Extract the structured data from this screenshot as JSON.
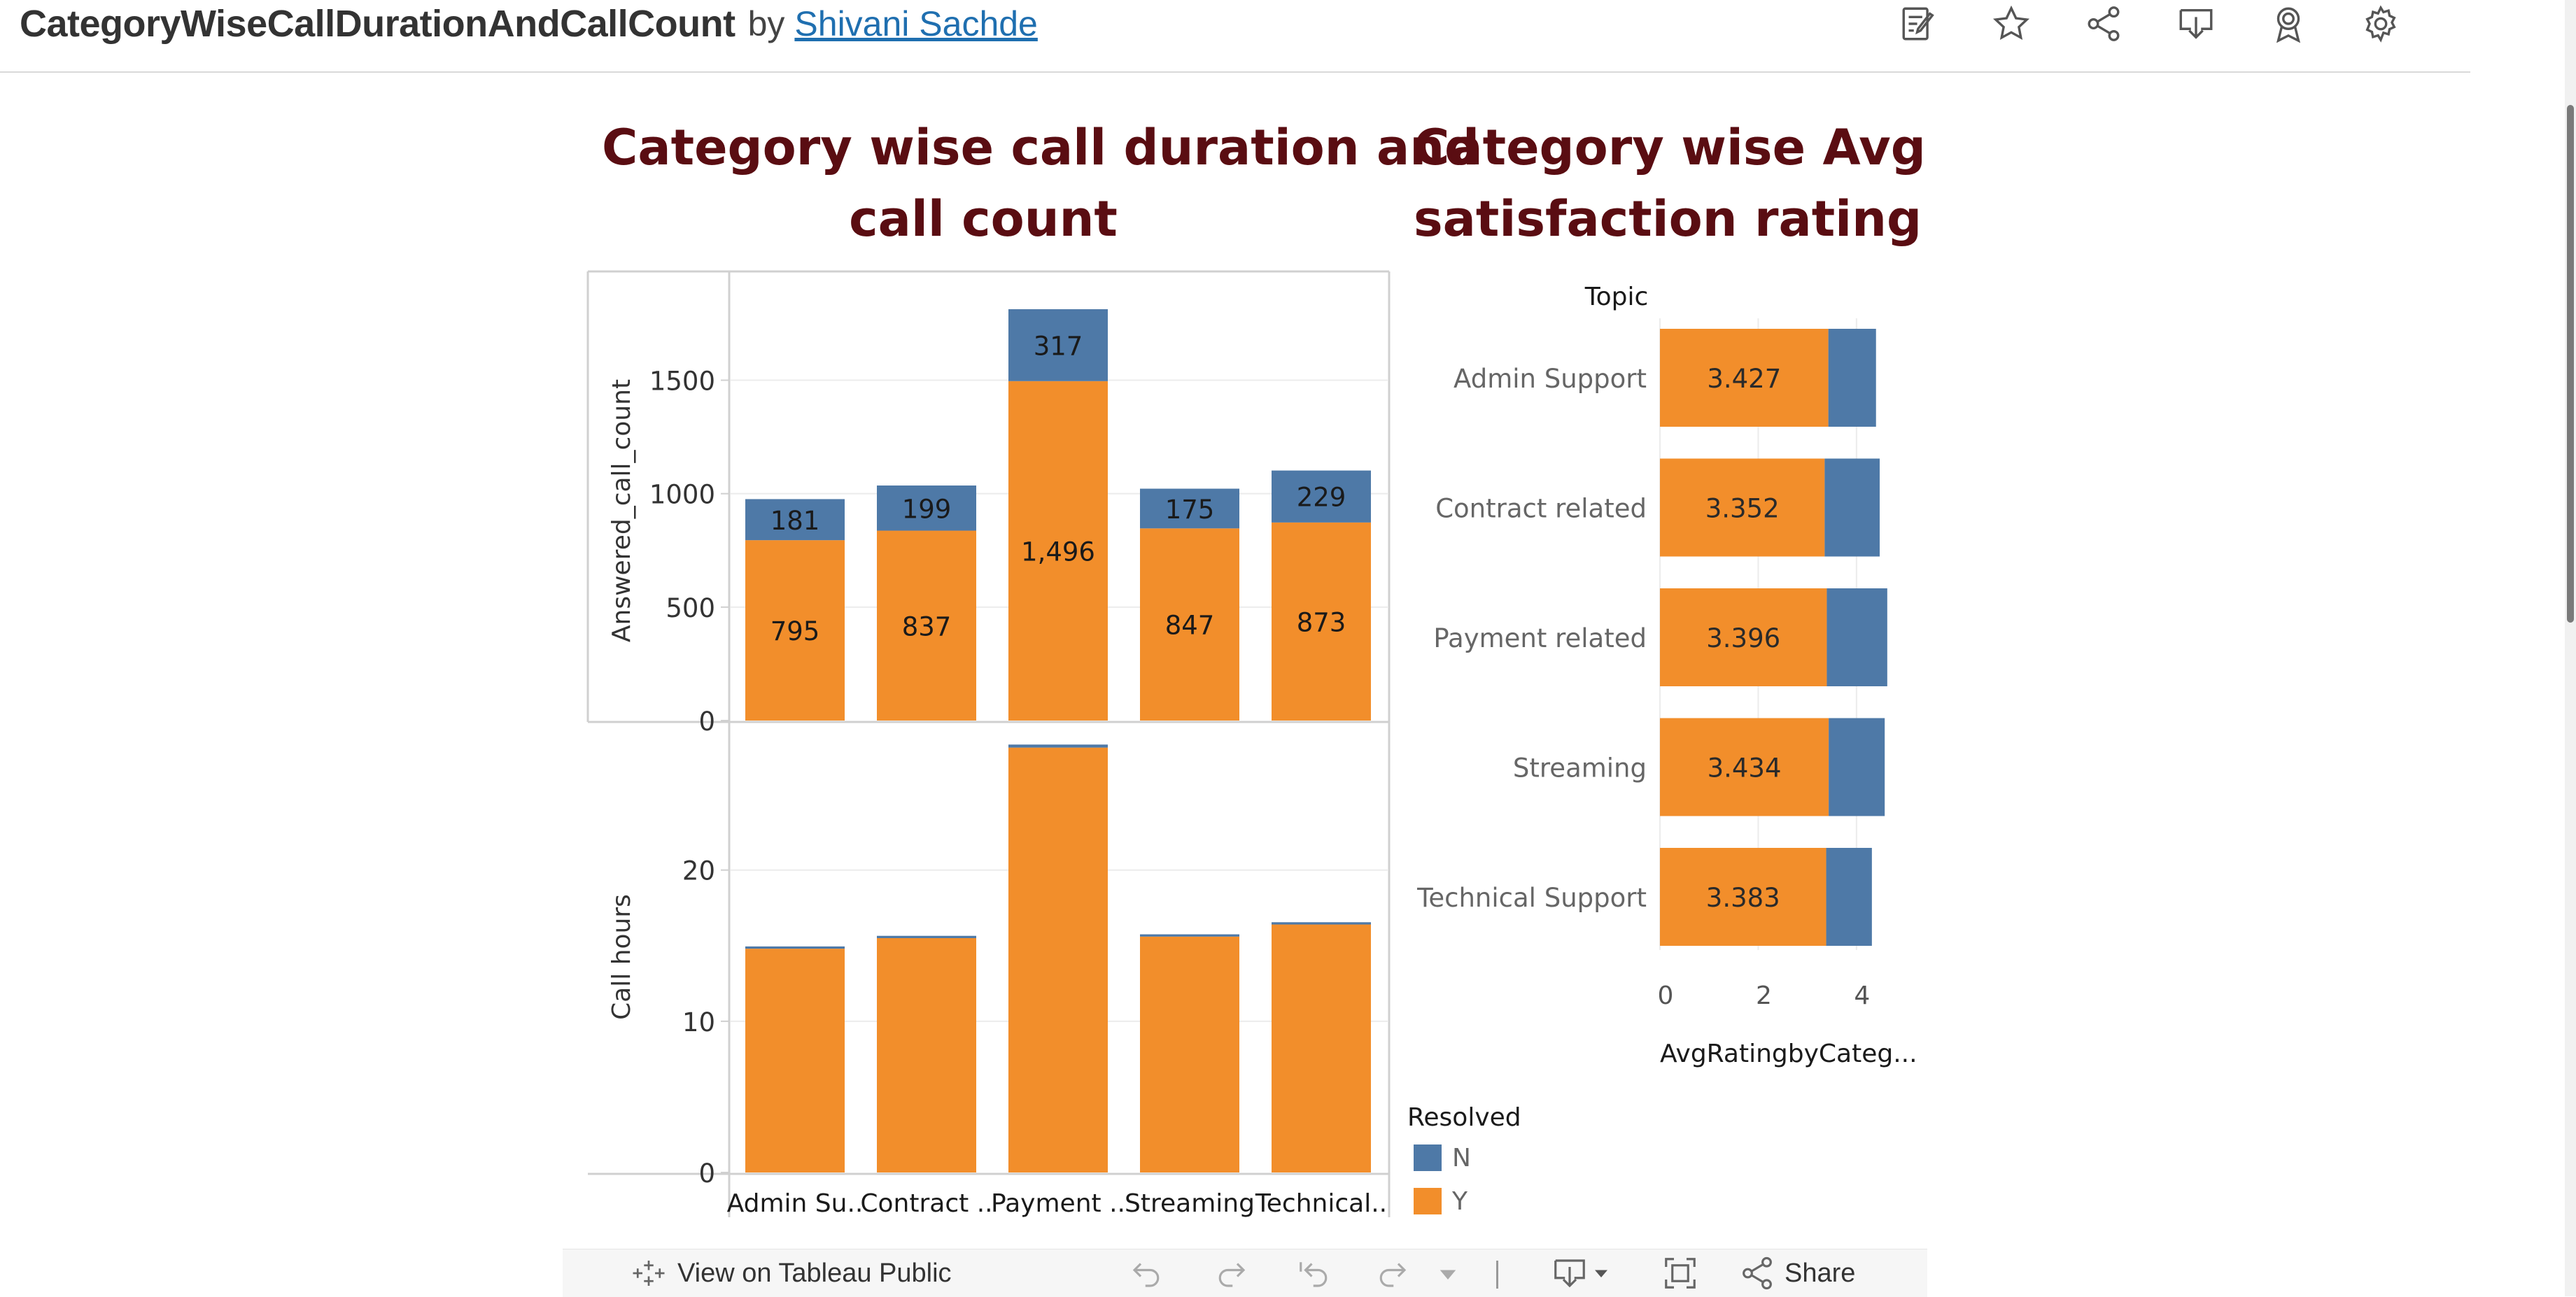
{
  "header": {
    "viz_title": "CategoryWiseCallDurationAndCallCount",
    "by": "by",
    "author": "Shivani Sachde",
    "icons": [
      "edit-sheet-icon",
      "star-icon",
      "share-network-icon",
      "download-tray-icon",
      "award-ribbon-icon",
      "gear-icon"
    ]
  },
  "dashboard": {
    "left_title_line1": "Category wise call duration and",
    "left_title_line2": "call count",
    "right_title_line1": "Category wise Avg",
    "right_title_line2": "satisfaction rating"
  },
  "colors": {
    "resolved_Y": "#f28e2b",
    "resolved_N": "#4e79a7",
    "title": "#5a0d12"
  },
  "chart_data": [
    {
      "type": "bar",
      "stacked": true,
      "categories": [
        "Admin Su..",
        "Contract ..",
        "Payment ..",
        "Streaming",
        "Technical.."
      ],
      "series": [
        {
          "name": "Y",
          "values": [
            795,
            837,
            1496,
            847,
            873
          ]
        },
        {
          "name": "N",
          "values": [
            181,
            199,
            317,
            175,
            229
          ]
        }
      ],
      "ylabel": "Answered_call_count",
      "ylim": [
        0,
        1850
      ],
      "yticks": [
        0,
        500,
        1000,
        1500
      ],
      "data_labels": true
    },
    {
      "type": "bar",
      "stacked": true,
      "categories": [
        "Admin Su..",
        "Contract ..",
        "Payment ..",
        "Streaming",
        "Technical.."
      ],
      "series": [
        {
          "name": "Y",
          "values": [
            14.8,
            15.5,
            28.1,
            15.6,
            16.4
          ]
        },
        {
          "name": "N",
          "values": [
            0.15,
            0.15,
            0.2,
            0.15,
            0.15
          ]
        }
      ],
      "ylabel": "Call hours",
      "ylim": [
        0,
        28.5
      ],
      "yticks": [
        0,
        10,
        20
      ]
    },
    {
      "type": "bar",
      "orientation": "horizontal",
      "stacked": true,
      "row_header": "Topic",
      "categories": [
        "Admin Support",
        "Contract related",
        "Payment related",
        "Streaming",
        "Technical Support"
      ],
      "series": [
        {
          "name": "Y",
          "values": [
            3.427,
            3.352,
            3.396,
            3.434,
            3.383
          ]
        },
        {
          "name": "N",
          "values": [
            0.97,
            1.12,
            1.23,
            1.14,
            0.93
          ]
        }
      ],
      "xlabel": "AvgRatingbyCateg...",
      "xlim": [
        0,
        4.6
      ],
      "xticks": [
        0,
        2,
        4
      ],
      "data_labels_series": "Y"
    }
  ],
  "legend": {
    "title": "Resolved",
    "items": [
      {
        "label": "N",
        "color": "#4e79a7"
      },
      {
        "label": "Y",
        "color": "#f28e2b"
      }
    ]
  },
  "toolbar": {
    "view_label": "View on Tableau Public",
    "share_label": "Share"
  }
}
